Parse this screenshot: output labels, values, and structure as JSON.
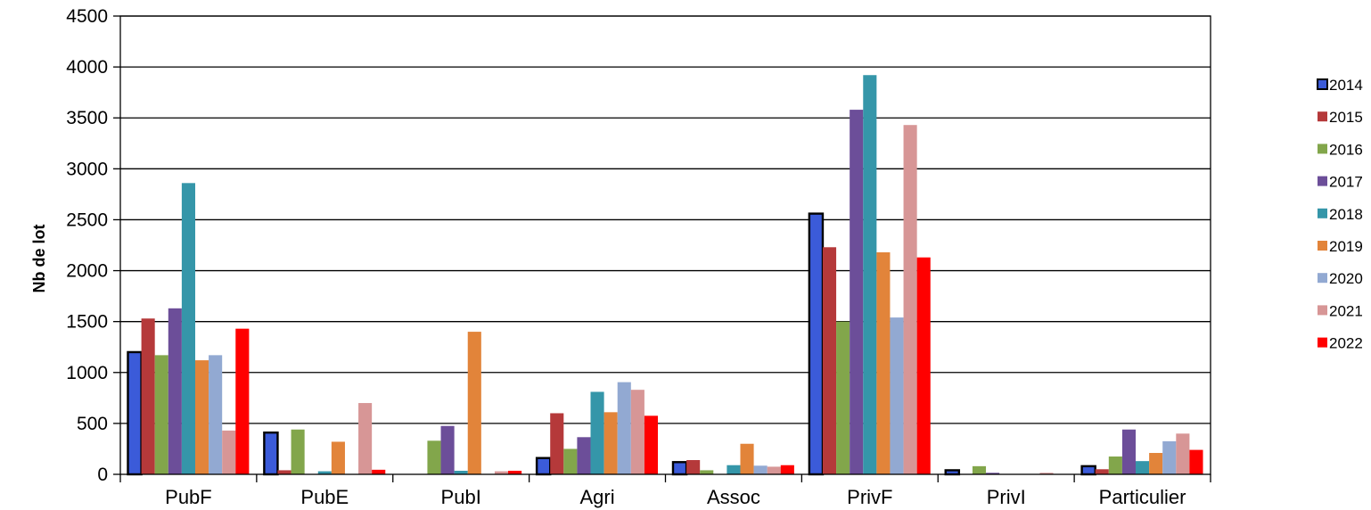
{
  "chart_data": {
    "type": "bar",
    "title": "",
    "xlabel": "",
    "ylabel": "Nb de lot",
    "ylim": [
      0,
      4500
    ],
    "yticks": [
      0,
      500,
      1000,
      1500,
      2000,
      2500,
      3000,
      3500,
      4000,
      4500
    ],
    "grid": true,
    "legend_position": "right",
    "categories": [
      "PubF",
      "PubE",
      "PubI",
      "Agri",
      "Assoc",
      "PrivF",
      "PrivI",
      "Particulier"
    ],
    "series": [
      {
        "name": "2014",
        "color": "#3b5bd9",
        "values": [
          1200,
          410,
          0,
          160,
          120,
          2560,
          40,
          80
        ]
      },
      {
        "name": "2015",
        "color": "#b5393a",
        "values": [
          1530,
          40,
          0,
          600,
          140,
          2230,
          0,
          50
        ]
      },
      {
        "name": "2016",
        "color": "#82a64b",
        "values": [
          1170,
          440,
          330,
          250,
          40,
          1500,
          80,
          175
        ]
      },
      {
        "name": "2017",
        "color": "#6c4e99",
        "values": [
          1630,
          0,
          475,
          365,
          0,
          3580,
          15,
          440
        ]
      },
      {
        "name": "2018",
        "color": "#3596a9",
        "values": [
          2860,
          30,
          35,
          810,
          90,
          3920,
          0,
          130
        ]
      },
      {
        "name": "2019",
        "color": "#e2843a",
        "values": [
          1120,
          320,
          1400,
          610,
          300,
          2180,
          0,
          210
        ]
      },
      {
        "name": "2020",
        "color": "#92a9d2",
        "values": [
          1170,
          0,
          0,
          905,
          85,
          1540,
          0,
          325
        ]
      },
      {
        "name": "2021",
        "color": "#d79696",
        "values": [
          430,
          700,
          30,
          830,
          75,
          3430,
          15,
          400
        ]
      },
      {
        "name": "2022",
        "color": "#ff0000",
        "values": [
          1430,
          45,
          35,
          575,
          90,
          2130,
          0,
          240
        ]
      }
    ]
  }
}
